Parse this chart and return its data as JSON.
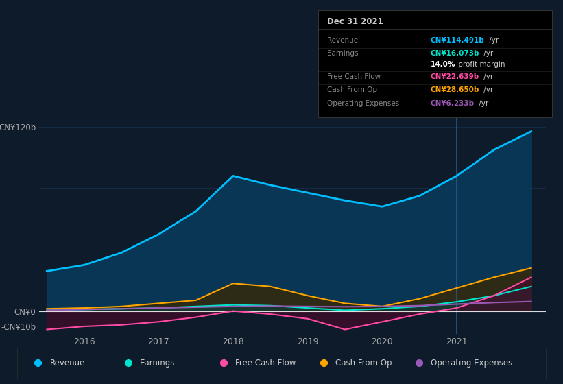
{
  "bg_color": "#0d1b2a",
  "plot_bg_color": "#0d1b2a",
  "grid_color": "#1e3a5f",
  "years": [
    2015.5,
    2016.0,
    2016.5,
    2017.0,
    2017.5,
    2018.0,
    2018.5,
    2019.0,
    2019.5,
    2020.0,
    2020.5,
    2021.0,
    2021.5,
    2022.0
  ],
  "revenue": [
    26,
    30,
    38,
    50,
    65,
    88,
    82,
    77,
    72,
    68,
    75,
    88,
    105,
    117
  ],
  "earnings": [
    0.5,
    1.0,
    1.5,
    2.0,
    3.0,
    4.0,
    3.5,
    2.0,
    0.5,
    1.5,
    3.0,
    6.0,
    10.0,
    16.0
  ],
  "free_cash_flow": [
    -12,
    -10,
    -9,
    -7,
    -4,
    0,
    -2,
    -5,
    -12,
    -7,
    -2,
    2,
    10,
    22
  ],
  "cash_from_op": [
    1.5,
    2.0,
    3.0,
    5.0,
    7.0,
    18,
    16,
    10,
    5,
    3,
    8,
    15,
    22,
    28
  ],
  "operating_expenses": [
    0.5,
    1.0,
    1.5,
    2.0,
    2.5,
    3.0,
    3.2,
    3.0,
    2.8,
    3.0,
    3.5,
    4.5,
    5.5,
    6.2
  ],
  "revenue_color": "#00bfff",
  "earnings_color": "#00e5cc",
  "free_cash_flow_color": "#ff4da6",
  "cash_from_op_color": "#ffa500",
  "operating_expenses_color": "#9b59b6",
  "revenue_fill": "#0a3a5a",
  "ylim_min": -15,
  "ylim_max": 130,
  "xticks": [
    2016,
    2017,
    2018,
    2019,
    2020,
    2021
  ],
  "legend_items": [
    "Revenue",
    "Earnings",
    "Free Cash Flow",
    "Cash From Op",
    "Operating Expenses"
  ],
  "legend_colors": [
    "#00bfff",
    "#00e5cc",
    "#ff4da6",
    "#ffa500",
    "#9b59b6"
  ],
  "tooltip_title": "Dec 31 2021",
  "tooltip_rows": [
    {
      "label": "Revenue",
      "value": "CN¥114.491b",
      "suffix": " /yr",
      "value_color": "#00bfff"
    },
    {
      "label": "Earnings",
      "value": "CN¥16.073b",
      "suffix": " /yr",
      "value_color": "#00e5cc"
    },
    {
      "label": "",
      "value": "14.0%",
      "suffix": " profit margin",
      "value_color": "#ffffff"
    },
    {
      "label": "Free Cash Flow",
      "value": "CN¥22.639b",
      "suffix": " /yr",
      "value_color": "#ff4da6"
    },
    {
      "label": "Cash From Op",
      "value": "CN¥28.650b",
      "suffix": " /yr",
      "value_color": "#ffa500"
    },
    {
      "label": "Operating Expenses",
      "value": "CN¥6.233b",
      "suffix": " /yr",
      "value_color": "#9b59b6"
    }
  ],
  "vline_x": 2021.0,
  "vline_color": "#2a5a8a"
}
